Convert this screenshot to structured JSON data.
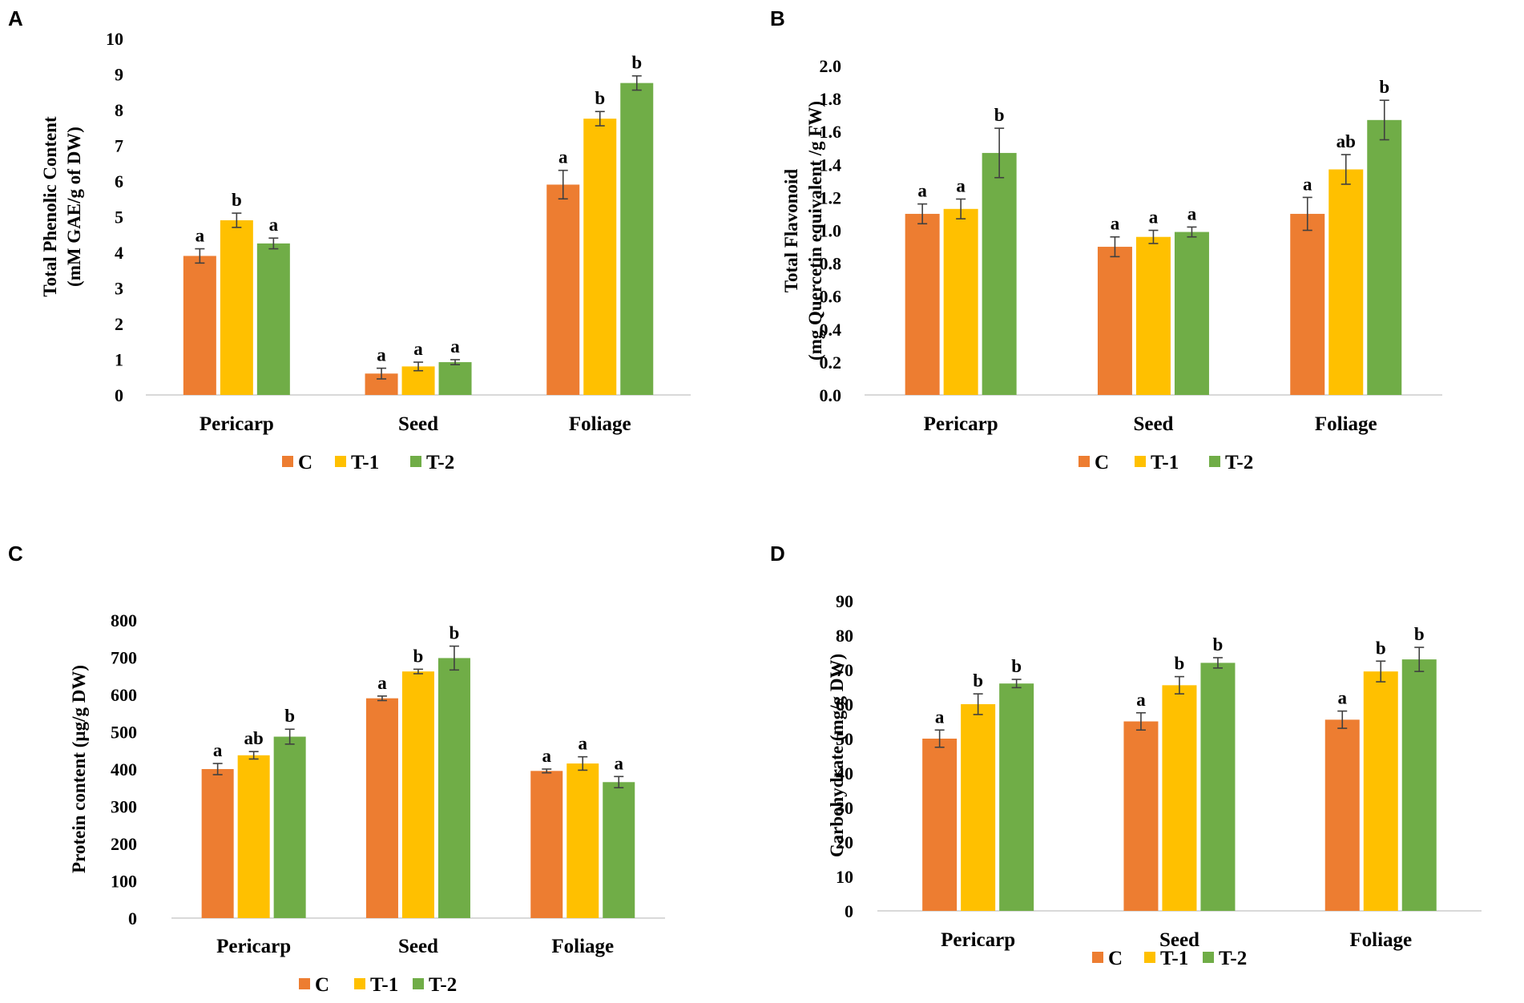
{
  "chart_data": [
    {
      "panel_label": "A",
      "type": "bar",
      "categories": [
        "Pericarp",
        "Seed",
        "Foliage"
      ],
      "ylabel_lines": [
        "Total Phenolic Content",
        "(mM GAE/g of DW)"
      ],
      "ylim": [
        0,
        10
      ],
      "yticks": [
        "0",
        "1",
        "2",
        "3",
        "4",
        "5",
        "6",
        "7",
        "8",
        "9",
        "10"
      ],
      "ytick_values": [
        0,
        1,
        2,
        3,
        4,
        5,
        6,
        7,
        8,
        9,
        10
      ],
      "series": [
        {
          "name": "C",
          "color": "#ed7d31",
          "values": [
            3.9,
            0.6,
            5.9
          ],
          "errors": [
            0.2,
            0.15,
            0.4
          ],
          "labels": [
            "a",
            "a",
            "a"
          ]
        },
        {
          "name": "T-1",
          "color": "#ffc000",
          "values": [
            4.9,
            0.8,
            7.75
          ],
          "errors": [
            0.2,
            0.12,
            0.2
          ],
          "labels": [
            "b",
            "a",
            "b"
          ]
        },
        {
          "name": "T-2",
          "color": "#70ad47",
          "values": [
            4.25,
            0.92,
            8.75
          ],
          "errors": [
            0.15,
            0.07,
            0.2
          ],
          "labels": [
            "a",
            "a",
            "b"
          ]
        }
      ],
      "legend": [
        "C",
        "T-1",
        "T-2"
      ]
    },
    {
      "panel_label": "B",
      "type": "bar",
      "categories": [
        "Pericarp",
        "Seed",
        "Foliage"
      ],
      "ylabel_lines": [
        "Total Flavonoid",
        "(mg Quercetin equivalent /g FW)"
      ],
      "ylim": [
        0,
        2.0
      ],
      "yticks": [
        "0.0",
        "0.2",
        "0.4",
        "0.6",
        "0.8",
        "1.0",
        "1.2",
        "1.4",
        "1.6",
        "1.8",
        "2.0"
      ],
      "ytick_values": [
        0,
        0.2,
        0.4,
        0.6,
        0.8,
        1.0,
        1.2,
        1.4,
        1.6,
        1.8,
        2.0
      ],
      "series": [
        {
          "name": "C",
          "color": "#ed7d31",
          "values": [
            1.1,
            0.9,
            1.1
          ],
          "errors": [
            0.06,
            0.06,
            0.1
          ],
          "labels": [
            "a",
            "a",
            "a"
          ]
        },
        {
          "name": "T-1",
          "color": "#ffc000",
          "values": [
            1.13,
            0.96,
            1.37
          ],
          "errors": [
            0.06,
            0.04,
            0.09
          ],
          "labels": [
            "a",
            "a",
            "ab"
          ]
        },
        {
          "name": "T-2",
          "color": "#70ad47",
          "values": [
            1.47,
            0.99,
            1.67
          ],
          "errors": [
            0.15,
            0.03,
            0.12
          ],
          "labels": [
            "b",
            "a",
            "b"
          ]
        }
      ],
      "legend": [
        "C",
        "T-1",
        "T-2"
      ]
    },
    {
      "panel_label": "C",
      "type": "bar",
      "categories": [
        "Pericarp",
        "Seed",
        "Foliage"
      ],
      "ylabel_lines": [
        "Protein content  (µg/g DW)"
      ],
      "ylim": [
        0,
        800
      ],
      "yticks": [
        "0",
        "100",
        "200",
        "300",
        "400",
        "500",
        "600",
        "700",
        "800"
      ],
      "ytick_values": [
        0,
        100,
        200,
        300,
        400,
        500,
        600,
        700,
        800
      ],
      "series": [
        {
          "name": "C",
          "color": "#ed7d31",
          "values": [
            400,
            590,
            395
          ],
          "errors": [
            15,
            6,
            5
          ],
          "labels": [
            "a",
            "a",
            "a"
          ]
        },
        {
          "name": "T-1",
          "color": "#ffc000",
          "values": [
            437,
            662,
            415
          ],
          "errors": [
            10,
            6,
            18
          ],
          "labels": [
            "ab",
            "b",
            "a"
          ]
        },
        {
          "name": "T-2",
          "color": "#70ad47",
          "values": [
            487,
            698,
            365
          ],
          "errors": [
            20,
            32,
            15
          ],
          "labels": [
            "b",
            "b",
            "a"
          ]
        }
      ],
      "legend": [
        "C",
        "T-1",
        "T-2"
      ]
    },
    {
      "panel_label": "D",
      "type": "bar",
      "categories": [
        "Pericarp",
        "Seed",
        "Foliage"
      ],
      "ylabel_lines": [
        "Carbohydrate  (mg/g DW)"
      ],
      "ylim": [
        0,
        90
      ],
      "yticks": [
        "0",
        "10",
        "20",
        "30",
        "40",
        "50",
        "60",
        "70",
        "80",
        "90"
      ],
      "ytick_values": [
        0,
        10,
        20,
        30,
        40,
        50,
        60,
        70,
        80,
        90
      ],
      "series": [
        {
          "name": "C",
          "color": "#ed7d31",
          "values": [
            50,
            55,
            55.5
          ],
          "errors": [
            2.5,
            2.5,
            2.5
          ],
          "labels": [
            "a",
            "a",
            "a"
          ]
        },
        {
          "name": "T-1",
          "color": "#ffc000",
          "values": [
            60,
            65.5,
            69.5
          ],
          "errors": [
            3,
            2.5,
            3
          ],
          "labels": [
            "b",
            "b",
            "b"
          ]
        },
        {
          "name": "T-2",
          "color": "#70ad47",
          "values": [
            66,
            72,
            73
          ],
          "errors": [
            1.2,
            1.5,
            3.5
          ],
          "labels": [
            "b",
            "b",
            "b"
          ]
        }
      ],
      "legend": [
        "C",
        "T-1",
        "T-2"
      ]
    }
  ]
}
